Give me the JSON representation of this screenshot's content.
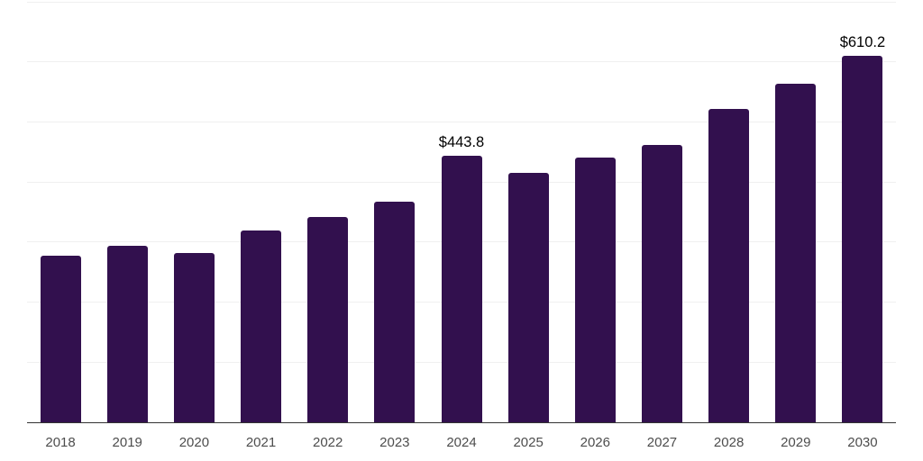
{
  "chart_data": {
    "type": "bar",
    "title": "",
    "xlabel": "",
    "ylabel": "",
    "categories": [
      "2018",
      "2019",
      "2020",
      "2021",
      "2022",
      "2023",
      "2024",
      "2025",
      "2026",
      "2027",
      "2028",
      "2029",
      "2030"
    ],
    "values": [
      278,
      294,
      282,
      319.5,
      342,
      367,
      443.8,
      415.3,
      440.3,
      461.3,
      521.6,
      564,
      610.2
    ],
    "annotations": [
      {
        "index": 6,
        "text": "$443.8"
      },
      {
        "index": 12,
        "text": "$610.2"
      }
    ],
    "ylim": [
      0,
      700
    ],
    "grid_step": 100,
    "grid": true,
    "legend": false,
    "y_axis_labels_visible": false,
    "colors": {
      "bar": "#32104E",
      "gridline": "#F0F0F0",
      "axis_line": "#333333",
      "tick_label": "#4D4D4D",
      "annotation": "#000000",
      "background": "#FFFFFF"
    }
  }
}
